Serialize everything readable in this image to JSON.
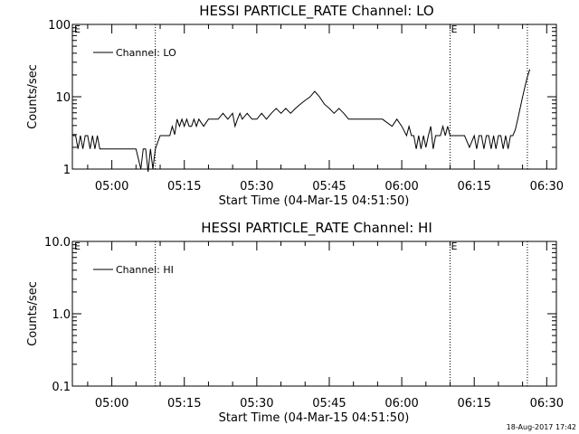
{
  "footer": {
    "timestamp": "18-Aug-2017 17:42"
  },
  "chart_data": [
    {
      "type": "line",
      "title": "HESSI PARTICLE_RATE Channel: LO",
      "xlabel": "Start Time (04-Mar-15 04:51:50)",
      "ylabel": "Counts/sec",
      "yscale": "log",
      "xlim": [
        "04:51:50",
        "06:32:00"
      ],
      "ylim": [
        1,
        100
      ],
      "xticks": [
        "05:00",
        "05:15",
        "05:30",
        "05:45",
        "06:00",
        "06:15",
        "06:30"
      ],
      "yticks": [
        "1",
        "10",
        "100"
      ],
      "legend": {
        "position": "top-left",
        "entries": [
          "Channel: LO"
        ]
      },
      "vlines": [
        "05:09",
        "06:10",
        "06:26"
      ],
      "markers": [
        "E",
        "E"
      ],
      "grid": false,
      "series": [
        {
          "name": "Channel: LO",
          "x": [
            "04:51:50",
            "04:52:30",
            "04:53:00",
            "04:53:30",
            "04:54:00",
            "04:54:30",
            "04:55:00",
            "04:55:30",
            "04:56:00",
            "04:56:30",
            "04:57:00",
            "04:57:30",
            "04:58:00",
            "05:00:00",
            "05:03:00",
            "05:05:00",
            "05:06:00",
            "05:06:30",
            "05:07:00",
            "05:07:30",
            "05:08:00",
            "05:08:30",
            "05:09:00",
            "05:10:00",
            "05:11:00",
            "05:12:00",
            "05:12:30",
            "05:13:00",
            "05:13:30",
            "05:14:00",
            "05:14:30",
            "05:15:00",
            "05:15:30",
            "05:16:00",
            "05:16:30",
            "05:17:00",
            "05:17:30",
            "05:18:00",
            "05:19:00",
            "05:20:00",
            "05:21:00",
            "05:22:00",
            "05:23:00",
            "05:24:00",
            "05:25:00",
            "05:25:30",
            "05:26:00",
            "05:26:30",
            "05:27:00",
            "05:28:00",
            "05:29:00",
            "05:30:00",
            "05:31:00",
            "05:32:00",
            "05:33:00",
            "05:34:00",
            "05:35:00",
            "05:36:00",
            "05:37:00",
            "05:38:00",
            "05:39:00",
            "05:40:00",
            "05:41:00",
            "05:42:00",
            "05:43:00",
            "05:44:00",
            "05:45:00",
            "05:46:00",
            "05:47:00",
            "05:48:00",
            "05:49:00",
            "05:50:00",
            "05:52:00",
            "05:54:00",
            "05:56:00",
            "05:58:00",
            "05:59:00",
            "06:00:00",
            "06:01:00",
            "06:01:30",
            "06:02:00",
            "06:02:30",
            "06:03:00",
            "06:03:30",
            "06:04:00",
            "06:04:30",
            "06:05:00",
            "06:05:30",
            "06:06:00",
            "06:06:30",
            "06:07:00",
            "06:07:30",
            "06:08:00",
            "06:08:30",
            "06:09:00",
            "06:09:30",
            "06:10:00",
            "06:11:00",
            "06:12:00",
            "06:13:00",
            "06:14:00",
            "06:15:00",
            "06:15:30",
            "06:16:00",
            "06:16:30",
            "06:17:00",
            "06:17:30",
            "06:18:00",
            "06:18:30",
            "06:19:00",
            "06:19:30",
            "06:20:00",
            "06:20:30",
            "06:21:00",
            "06:21:30",
            "06:22:00",
            "06:22:30",
            "06:23:00",
            "06:23:30",
            "06:24:00",
            "06:24:30",
            "06:25:00",
            "06:25:30",
            "06:26:00",
            "06:26:30"
          ],
          "y": [
            2.9,
            2.9,
            1.9,
            2.9,
            1.9,
            2.9,
            2.9,
            1.9,
            2.9,
            1.9,
            2.9,
            1.9,
            1.9,
            1.9,
            1.9,
            1.9,
            1.0,
            1.9,
            1.9,
            0.9,
            1.9,
            1.0,
            1.9,
            2.9,
            2.9,
            2.9,
            3.9,
            3.0,
            4.9,
            3.9,
            4.9,
            3.9,
            4.9,
            3.9,
            3.9,
            4.9,
            3.9,
            4.9,
            3.9,
            4.9,
            4.9,
            4.9,
            5.9,
            4.9,
            5.9,
            3.9,
            4.9,
            5.9,
            4.9,
            5.9,
            4.9,
            4.9,
            5.9,
            4.9,
            5.9,
            6.9,
            5.9,
            6.9,
            5.9,
            6.9,
            7.9,
            8.9,
            9.9,
            11.9,
            9.9,
            7.9,
            6.9,
            5.9,
            6.9,
            5.9,
            4.9,
            4.9,
            4.9,
            4.9,
            4.9,
            3.9,
            4.9,
            3.9,
            2.9,
            3.9,
            2.9,
            2.9,
            1.9,
            2.9,
            1.9,
            2.9,
            2.0,
            2.9,
            3.9,
            1.9,
            2.9,
            2.9,
            2.9,
            3.9,
            2.9,
            3.9,
            2.9,
            2.9,
            2.9,
            2.9,
            2.0,
            2.9,
            1.9,
            2.9,
            2.9,
            1.9,
            2.9,
            2.9,
            1.9,
            2.9,
            1.9,
            2.9,
            2.9,
            1.9,
            2.9,
            1.9,
            2.9,
            2.9,
            3.5,
            4.9,
            6.9,
            9.9,
            13.9,
            18.9,
            23.9
          ]
        }
      ]
    },
    {
      "type": "line",
      "title": "HESSI PARTICLE_RATE Channel: HI",
      "xlabel": "Start Time (04-Mar-15 04:51:50)",
      "ylabel": "Counts/sec",
      "yscale": "log",
      "xlim": [
        "04:51:50",
        "06:32:00"
      ],
      "ylim": [
        0.1,
        10.0
      ],
      "xticks": [
        "05:00",
        "05:15",
        "05:30",
        "05:45",
        "06:00",
        "06:15",
        "06:30"
      ],
      "yticks": [
        "0.1",
        "1.0",
        "10.0"
      ],
      "legend": {
        "position": "top-left",
        "entries": [
          "Channel: HI"
        ]
      },
      "vlines": [
        "05:09",
        "06:10",
        "06:26"
      ],
      "markers": [
        "E",
        "E"
      ],
      "grid": false,
      "series": [
        {
          "name": "Channel: HI",
          "x": [],
          "y": []
        }
      ]
    }
  ]
}
